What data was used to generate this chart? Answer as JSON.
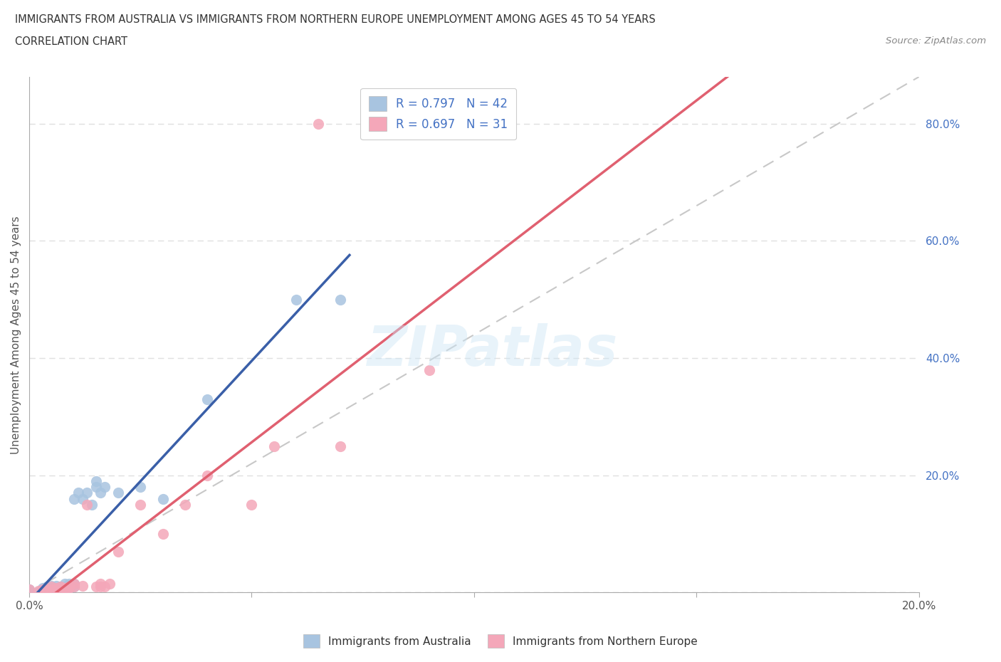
{
  "title_line1": "IMMIGRANTS FROM AUSTRALIA VS IMMIGRANTS FROM NORTHERN EUROPE UNEMPLOYMENT AMONG AGES 45 TO 54 YEARS",
  "title_line2": "CORRELATION CHART",
  "source_text": "Source: ZipAtlas.com",
  "xlabel": "",
  "ylabel": "Unemployment Among Ages 45 to 54 years",
  "xlim": [
    0.0,
    0.2
  ],
  "ylim": [
    0.0,
    0.88
  ],
  "xticks": [
    0.0,
    0.05,
    0.1,
    0.15,
    0.2
  ],
  "yticks": [
    0.0,
    0.2,
    0.4,
    0.6,
    0.8
  ],
  "R_australia": 0.797,
  "N_australia": 42,
  "R_northern_europe": 0.697,
  "N_northern_europe": 31,
  "color_australia": "#a8c4e0",
  "color_northern_europe": "#f4a7b9",
  "line_color_australia": "#3a5fa8",
  "line_color_northern_europe": "#e06070",
  "diagonal_color": "#c8c8c8",
  "background_color": "#ffffff",
  "grid_color": "#e0e0e0",
  "title_color": "#333333",
  "legend_text_color": "#4472c4",
  "australia_scatter_x": [
    0.0,
    0.0,
    0.0,
    0.002,
    0.003,
    0.003,
    0.003,
    0.004,
    0.004,
    0.004,
    0.005,
    0.005,
    0.005,
    0.005,
    0.006,
    0.006,
    0.006,
    0.007,
    0.007,
    0.007,
    0.008,
    0.008,
    0.008,
    0.009,
    0.009,
    0.01,
    0.01,
    0.01,
    0.011,
    0.012,
    0.013,
    0.014,
    0.015,
    0.015,
    0.016,
    0.017,
    0.02,
    0.025,
    0.03,
    0.04,
    0.06,
    0.07
  ],
  "australia_scatter_y": [
    0.0,
    0.002,
    0.005,
    0.0,
    0.003,
    0.005,
    0.008,
    0.002,
    0.005,
    0.01,
    0.003,
    0.006,
    0.008,
    0.012,
    0.005,
    0.008,
    0.012,
    0.003,
    0.006,
    0.01,
    0.005,
    0.01,
    0.015,
    0.008,
    0.015,
    0.01,
    0.015,
    0.16,
    0.17,
    0.16,
    0.17,
    0.15,
    0.18,
    0.19,
    0.17,
    0.18,
    0.17,
    0.18,
    0.16,
    0.33,
    0.5,
    0.5
  ],
  "northern_europe_scatter_x": [
    0.0,
    0.002,
    0.003,
    0.004,
    0.005,
    0.005,
    0.006,
    0.007,
    0.007,
    0.008,
    0.009,
    0.009,
    0.01,
    0.01,
    0.012,
    0.013,
    0.015,
    0.016,
    0.016,
    0.017,
    0.018,
    0.02,
    0.025,
    0.03,
    0.035,
    0.04,
    0.05,
    0.055,
    0.07,
    0.09,
    0.065
  ],
  "northern_europe_scatter_y": [
    0.005,
    0.003,
    0.005,
    0.005,
    0.005,
    0.01,
    0.008,
    0.005,
    0.01,
    0.008,
    0.008,
    0.01,
    0.01,
    0.015,
    0.012,
    0.15,
    0.01,
    0.015,
    0.01,
    0.01,
    0.015,
    0.07,
    0.15,
    0.1,
    0.15,
    0.2,
    0.15,
    0.25,
    0.25,
    0.38,
    0.8
  ]
}
